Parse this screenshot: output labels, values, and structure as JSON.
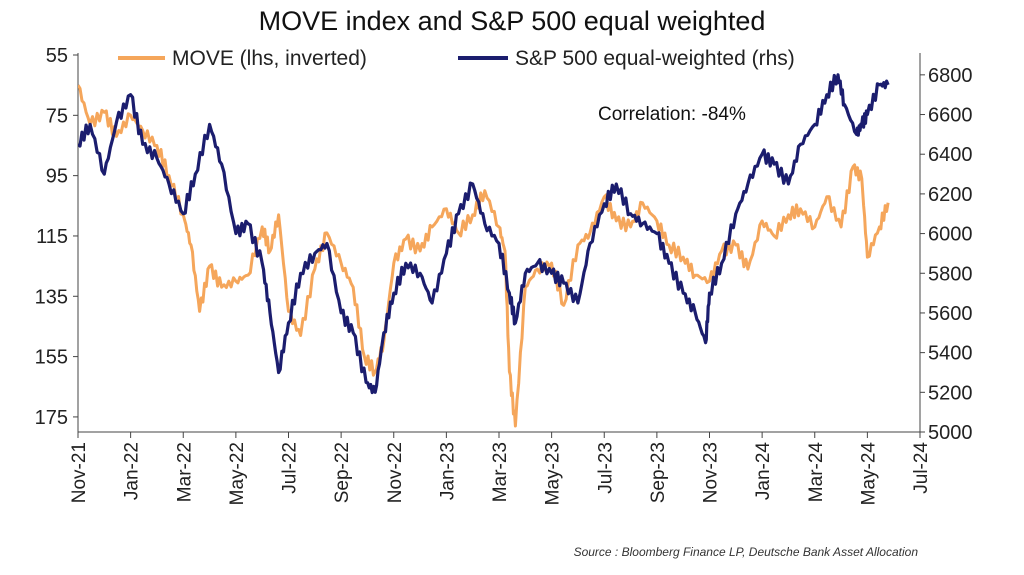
{
  "chart_data": {
    "type": "line",
    "title": "MOVE index and S&P 500 equal weighted",
    "legend_position": "top",
    "source": "Source : Bloomberg Finance LP, Deutsche Bank Asset Allocation",
    "annotation": "Correlation:  -84%",
    "colors": {
      "move": "#F5A65B",
      "spx": "#1B1D6E"
    },
    "x_ticks": [
      "Nov-21",
      "Jan-22",
      "Mar-22",
      "May-22",
      "Jul-22",
      "Sep-22",
      "Nov-22",
      "Jan-23",
      "Mar-23",
      "May-23",
      "Jul-23",
      "Sep-23",
      "Nov-23",
      "Jan-24",
      "Mar-24",
      "May-24",
      "Jul-24"
    ],
    "y_left": {
      "ticks": [
        "55",
        "75",
        "95",
        "115",
        "135",
        "155",
        "175"
      ],
      "range": [
        55,
        180
      ],
      "inverted": true
    },
    "y_right": {
      "ticks": [
        "5000",
        "5200",
        "5400",
        "5600",
        "5800",
        "6000",
        "6200",
        "6400",
        "6600",
        "6800"
      ],
      "range": [
        5000,
        6900
      ]
    },
    "series": [
      {
        "name": "MOVE (lhs, inverted)",
        "axis": "left",
        "x": [
          "2021-11-01",
          "2021-11-15",
          "2021-12-01",
          "2021-12-15",
          "2022-01-01",
          "2022-01-15",
          "2022-02-01",
          "2022-02-15",
          "2022-03-01",
          "2022-03-10",
          "2022-03-20",
          "2022-04-01",
          "2022-04-15",
          "2022-05-01",
          "2022-05-15",
          "2022-06-01",
          "2022-06-10",
          "2022-06-20",
          "2022-07-01",
          "2022-07-15",
          "2022-08-01",
          "2022-08-15",
          "2022-09-01",
          "2022-09-15",
          "2022-09-28",
          "2022-10-10",
          "2022-10-20",
          "2022-11-01",
          "2022-11-15",
          "2022-12-01",
          "2022-12-15",
          "2023-01-01",
          "2023-01-15",
          "2023-02-01",
          "2023-02-15",
          "2023-03-01",
          "2023-03-08",
          "2023-03-13",
          "2023-03-20",
          "2023-04-01",
          "2023-04-15",
          "2023-05-01",
          "2023-05-15",
          "2023-06-01",
          "2023-06-15",
          "2023-07-01",
          "2023-07-15",
          "2023-08-01",
          "2023-08-15",
          "2023-09-01",
          "2023-09-15",
          "2023-10-01",
          "2023-10-15",
          "2023-11-01",
          "2023-11-15",
          "2023-12-01",
          "2023-12-15",
          "2024-01-01",
          "2024-01-15",
          "2024-02-01",
          "2024-02-15",
          "2024-03-01",
          "2024-03-15",
          "2024-04-01",
          "2024-04-15",
          "2024-04-25",
          "2024-05-01",
          "2024-05-15",
          "2024-05-25"
        ],
        "values": [
          65,
          78,
          74,
          82,
          75,
          80,
          85,
          95,
          108,
          118,
          140,
          125,
          132,
          130,
          128,
          112,
          120,
          108,
          140,
          148,
          126,
          114,
          124,
          132,
          155,
          160,
          150,
          124,
          116,
          120,
          112,
          106,
          114,
          108,
          100,
          112,
          120,
          160,
          178,
          132,
          126,
          124,
          138,
          118,
          114,
          102,
          110,
          112,
          104,
          110,
          118,
          122,
          128,
          130,
          120,
          118,
          126,
          110,
          115,
          108,
          106,
          112,
          102,
          112,
          92,
          96,
          122,
          112,
          104
        ]
      },
      {
        "name": "S&P 500 equal-weighted (rhs)",
        "axis": "right",
        "x": [
          "2021-11-01",
          "2021-11-15",
          "2021-12-01",
          "2021-12-15",
          "2022-01-01",
          "2022-01-15",
          "2022-02-01",
          "2022-02-15",
          "2022-03-01",
          "2022-03-15",
          "2022-04-01",
          "2022-04-15",
          "2022-05-01",
          "2022-05-15",
          "2022-06-01",
          "2022-06-10",
          "2022-06-20",
          "2022-07-01",
          "2022-07-15",
          "2022-08-01",
          "2022-08-15",
          "2022-09-01",
          "2022-09-15",
          "2022-09-30",
          "2022-10-10",
          "2022-10-20",
          "2022-11-01",
          "2022-11-15",
          "2022-12-01",
          "2022-12-15",
          "2023-01-01",
          "2023-01-15",
          "2023-02-01",
          "2023-02-15",
          "2023-03-01",
          "2023-03-13",
          "2023-03-20",
          "2023-04-01",
          "2023-04-15",
          "2023-05-01",
          "2023-05-15",
          "2023-06-01",
          "2023-06-15",
          "2023-07-01",
          "2023-07-15",
          "2023-08-01",
          "2023-08-15",
          "2023-09-01",
          "2023-09-15",
          "2023-10-01",
          "2023-10-15",
          "2023-10-27",
          "2023-11-01",
          "2023-11-15",
          "2023-12-01",
          "2023-12-15",
          "2024-01-01",
          "2024-01-15",
          "2024-02-01",
          "2024-02-15",
          "2024-03-01",
          "2024-03-15",
          "2024-03-28",
          "2024-04-05",
          "2024-04-19",
          "2024-04-25",
          "2024-05-01",
          "2024-05-15",
          "2024-05-25"
        ],
        "values": [
          6450,
          6550,
          6300,
          6560,
          6700,
          6450,
          6380,
          6250,
          6100,
          6300,
          6550,
          6350,
          6000,
          6050,
          5850,
          5600,
          5300,
          5550,
          5800,
          5900,
          5950,
          5600,
          5500,
          5250,
          5200,
          5500,
          5700,
          5850,
          5800,
          5650,
          5900,
          6100,
          6250,
          6050,
          5950,
          5700,
          5550,
          5800,
          5850,
          5800,
          5750,
          5650,
          5950,
          6150,
          6250,
          6100,
          6050,
          6000,
          5850,
          5700,
          5600,
          5450,
          5700,
          5850,
          6100,
          6250,
          6400,
          6350,
          6250,
          6450,
          6550,
          6700,
          6800,
          6650,
          6500,
          6550,
          6600,
          6750,
          6750
        ]
      }
    ]
  }
}
